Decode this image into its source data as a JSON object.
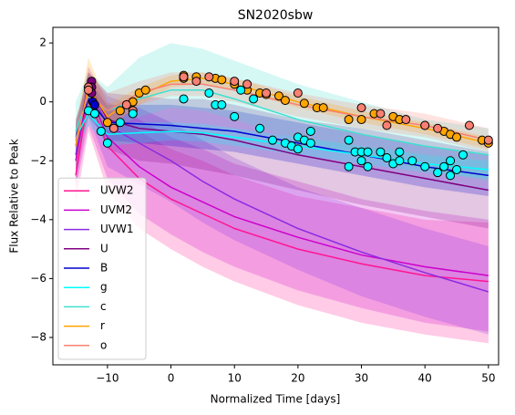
{
  "chart_data": {
    "type": "line",
    "title": "SN2020sbw",
    "xlabel": "Normalized Time [days]",
    "ylabel": "Flux Relative to Peak",
    "xlim": [
      -18.6,
      51.6
    ],
    "ylim": [
      -8.93,
      2.53
    ],
    "xticks": [
      {
        "value": -10,
        "label": "−10"
      },
      0,
      10,
      20,
      30,
      40,
      50
    ],
    "yticks": [
      {
        "value": -8,
        "label": "−8"
      },
      {
        "value": -6,
        "label": "−6"
      },
      {
        "value": -4,
        "label": "−4"
      },
      {
        "value": -2,
        "label": "−2"
      },
      0,
      2
    ],
    "legend": "lower left",
    "x": [
      -15,
      -13,
      -10,
      -5,
      0,
      5,
      10,
      20,
      30,
      40,
      50
    ],
    "series": [
      {
        "name": "UVW2",
        "color": "#ff1493",
        "values": [
          -2.5,
          0.2,
          -1.5,
          -2.6,
          -3.3,
          -3.8,
          -4.3,
          -5.0,
          -5.5,
          -5.9,
          -6.1
        ],
        "lower": [
          -3.5,
          -1.0,
          -3.0,
          -4.3,
          -5.0,
          -5.6,
          -6.1,
          -6.9,
          -7.5,
          -7.9,
          -8.2
        ],
        "upper": [
          -1.5,
          1.0,
          -0.2,
          -1.0,
          -1.6,
          -2.0,
          -2.5,
          -3.2,
          -3.6,
          -4.0,
          -4.1
        ]
      },
      {
        "name": "UVM2",
        "color": "#cc00cc",
        "values": [
          -2.0,
          0.4,
          -1.2,
          -2.2,
          -2.9,
          -3.4,
          -3.9,
          -4.6,
          -5.2,
          -5.6,
          -5.9
        ],
        "lower": [
          -3.0,
          -0.8,
          -2.6,
          -3.8,
          -4.5,
          -5.1,
          -5.6,
          -6.4,
          -7.0,
          -7.5,
          -7.8
        ],
        "upper": [
          -1.0,
          1.2,
          0.0,
          -0.6,
          -1.2,
          -1.6,
          -2.1,
          -2.7,
          -3.3,
          -3.7,
          -4.0
        ]
      },
      {
        "name": "UVW1",
        "color": "#8a2be2",
        "values": [
          -1.8,
          0.5,
          -0.8,
          -1.4,
          -2.0,
          -2.7,
          -3.3,
          -4.3,
          -5.1,
          -5.8,
          -6.45
        ],
        "lower": [
          -2.8,
          -0.5,
          -2.2,
          -2.8,
          -3.4,
          -4.1,
          -4.7,
          -5.7,
          -6.6,
          -7.3,
          -7.9
        ],
        "upper": [
          -0.8,
          1.0,
          0.2,
          -0.2,
          -0.7,
          -1.3,
          -1.9,
          -2.9,
          -3.6,
          -4.3,
          -4.9
        ]
      },
      {
        "name": "U",
        "color": "#800080",
        "values": [
          -1.5,
          0.6,
          -0.6,
          -0.9,
          -1.0,
          -1.1,
          -1.3,
          -1.8,
          -2.2,
          -2.6,
          -3.0
        ],
        "lower": [
          -2.3,
          -0.2,
          -1.6,
          -2.0,
          -2.1,
          -2.3,
          -2.5,
          -3.0,
          -3.5,
          -3.9,
          -4.3
        ],
        "upper": [
          -0.7,
          1.0,
          0.3,
          0.2,
          0.1,
          0.1,
          -0.1,
          -0.6,
          -0.9,
          -1.3,
          -1.7
        ]
      },
      {
        "name": "B",
        "color": "#0000cd",
        "values": [
          -1.2,
          0.1,
          -0.7,
          -0.75,
          -0.8,
          -0.9,
          -1.0,
          -1.4,
          -1.8,
          -2.2,
          -2.5
        ],
        "lower": [
          -1.8,
          -0.5,
          -1.3,
          -1.4,
          -1.5,
          -1.6,
          -1.7,
          -2.1,
          -2.5,
          -2.9,
          -3.2
        ],
        "upper": [
          -0.6,
          0.7,
          -0.1,
          -0.1,
          -0.1,
          -0.2,
          -0.3,
          -0.7,
          -1.1,
          -1.5,
          -1.8
        ]
      },
      {
        "name": "g",
        "color": "#00ffff",
        "values": [
          -1.2,
          -0.4,
          -1.1,
          -1.05,
          -1.0,
          -1.05,
          -1.2,
          -1.5,
          -1.8,
          -2.1,
          -2.3
        ],
        "lower": [
          -1.6,
          -0.8,
          -1.5,
          -1.4,
          -1.3,
          -1.35,
          -1.5,
          -1.8,
          -2.1,
          -2.4,
          -2.6
        ],
        "upper": [
          -0.8,
          0.0,
          -0.7,
          -0.7,
          -0.7,
          -0.75,
          -0.9,
          -1.2,
          -1.5,
          -1.8,
          -2.0
        ]
      },
      {
        "name": "c",
        "color": "#40e0d0",
        "values": [
          -1.0,
          0.2,
          -0.3,
          0.1,
          0.4,
          0.4,
          0.1,
          -0.6,
          -1.1,
          -1.5,
          -1.8
        ],
        "lower": [
          -2.0,
          -0.6,
          -1.0,
          -0.5,
          -0.2,
          -0.3,
          -0.6,
          -1.3,
          -1.8,
          -2.3,
          -2.7
        ],
        "upper": [
          0.0,
          1.0,
          0.5,
          1.5,
          2.0,
          1.8,
          1.4,
          0.6,
          0.0,
          -0.6,
          -0.9
        ]
      },
      {
        "name": "r",
        "color": "#ffa500",
        "values": [
          -1.5,
          0.5,
          -0.5,
          0.2,
          0.7,
          0.8,
          0.6,
          0.0,
          -0.5,
          -0.9,
          -1.4
        ],
        "lower": [
          -2.2,
          -0.3,
          -0.9,
          -0.1,
          0.5,
          0.6,
          0.4,
          -0.2,
          -0.7,
          -1.1,
          -1.6
        ],
        "upper": [
          -0.8,
          1.5,
          -0.1,
          0.5,
          0.9,
          1.0,
          0.8,
          0.2,
          -0.3,
          -0.7,
          -1.2
        ]
      },
      {
        "name": "o",
        "color": "#fa8072",
        "values": [
          -1.3,
          0.3,
          -0.3,
          0.3,
          0.6,
          0.6,
          0.4,
          -0.1,
          -0.5,
          -0.8,
          -1.3
        ],
        "lower": [
          -2.0,
          -0.5,
          -0.9,
          -0.1,
          0.2,
          0.2,
          0.0,
          -0.5,
          -0.9,
          -1.2,
          -1.7
        ],
        "upper": [
          -0.6,
          1.0,
          0.3,
          0.7,
          1.0,
          1.0,
          0.8,
          0.3,
          -0.1,
          -0.4,
          -0.9
        ]
      }
    ],
    "observations": [
      {
        "color": "#800080",
        "x": [
          -12.5,
          -12.5,
          -12.5
        ],
        "y": [
          0.7,
          0.5,
          0.3
        ]
      },
      {
        "color": "#0000cd",
        "x": [
          -12.3,
          -12
        ],
        "y": [
          0.0,
          -0.1
        ]
      },
      {
        "color": "#ffa500",
        "x": [
          -12,
          -10,
          -8,
          -6,
          -5,
          -4,
          2,
          2,
          4,
          7,
          8,
          10,
          12,
          14,
          15,
          17,
          18,
          21,
          23,
          24,
          28,
          30,
          32,
          35,
          36,
          40,
          43,
          44,
          45,
          49,
          50
        ],
        "y": [
          -0.4,
          -0.7,
          -0.3,
          0.0,
          0.3,
          0.4,
          0.8,
          0.9,
          0.85,
          0.8,
          0.75,
          0.6,
          0.4,
          0.3,
          0.25,
          0.2,
          0.05,
          -0.05,
          -0.2,
          -0.2,
          -0.6,
          -0.6,
          -0.4,
          -0.5,
          -0.6,
          -0.8,
          -1.0,
          -1.1,
          -1.2,
          -1.3,
          -1.4
        ]
      },
      {
        "color": "#fa8072",
        "x": [
          -13,
          -13,
          -9,
          -7,
          -6,
          2,
          4,
          6,
          10,
          12,
          15,
          20,
          30,
          33,
          34,
          37,
          40,
          42,
          47,
          50
        ],
        "y": [
          0.5,
          0.4,
          -0.9,
          -0.1,
          -0.3,
          0.85,
          0.7,
          0.85,
          0.7,
          0.6,
          0.3,
          0.3,
          -0.2,
          -0.4,
          -0.8,
          -0.6,
          -0.8,
          -0.9,
          -0.8,
          -1.3
        ]
      },
      {
        "color": "#00ffff",
        "x": [
          -13,
          -12,
          -11,
          -10,
          -8,
          -6,
          2,
          6,
          7,
          8,
          10,
          11,
          13,
          14,
          16,
          18,
          19,
          20,
          20,
          21,
          22,
          22,
          28,
          28,
          29,
          30,
          30,
          31,
          31,
          33,
          34,
          35,
          36,
          36,
          38,
          40,
          42,
          43,
          44,
          44,
          45,
          46
        ],
        "y": [
          -0.3,
          -0.4,
          -1.0,
          -1.4,
          -0.7,
          -0.4,
          0.1,
          0.3,
          -0.1,
          -0.1,
          -0.5,
          0.4,
          0.1,
          -0.9,
          -1.3,
          -1.4,
          -1.5,
          -1.2,
          -1.6,
          -1.3,
          -1.4,
          -1.0,
          -1.3,
          -2.2,
          -1.7,
          -2.0,
          -1.7,
          -2.2,
          -1.7,
          -1.7,
          -1.9,
          -2.1,
          -2.0,
          -1.7,
          -2.0,
          -2.2,
          -2.4,
          -2.2,
          -2.0,
          -2.5,
          -2.3,
          -1.8
        ]
      }
    ]
  }
}
